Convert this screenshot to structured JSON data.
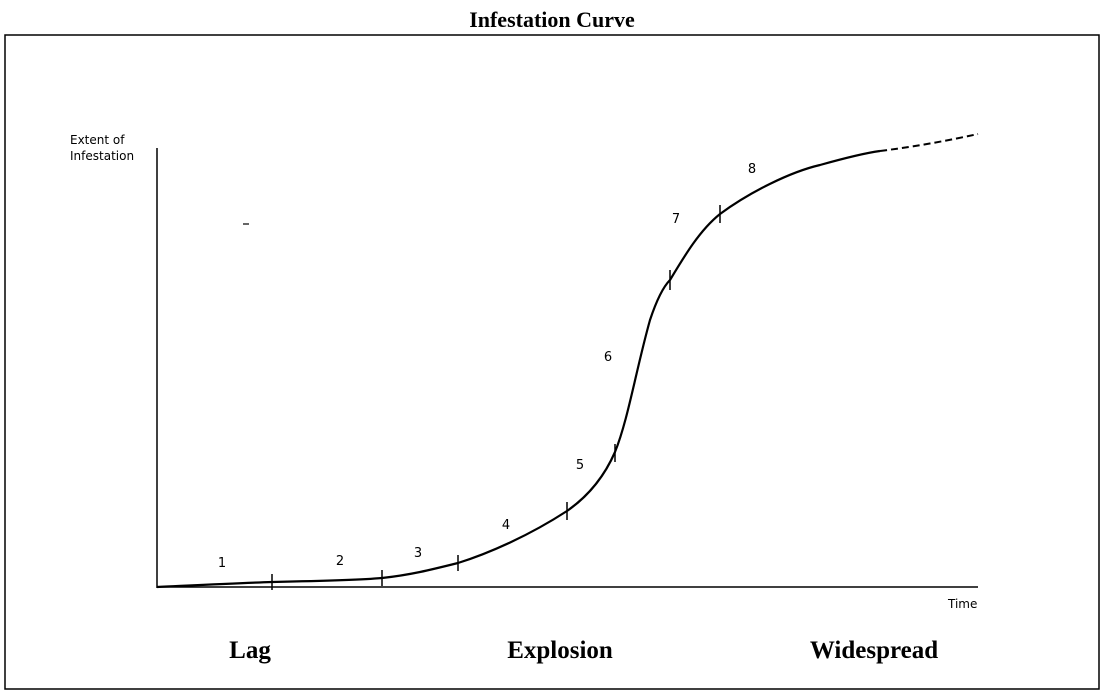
{
  "title": "Infestation Curve",
  "axes": {
    "y_label": [
      "Extent of",
      "Infestation"
    ],
    "x_label": "Time"
  },
  "stages": [
    "1",
    "2",
    "3",
    "4",
    "5",
    "6",
    "7",
    "8"
  ],
  "phases": [
    "Lag",
    "Explosion",
    "Widespread"
  ]
}
